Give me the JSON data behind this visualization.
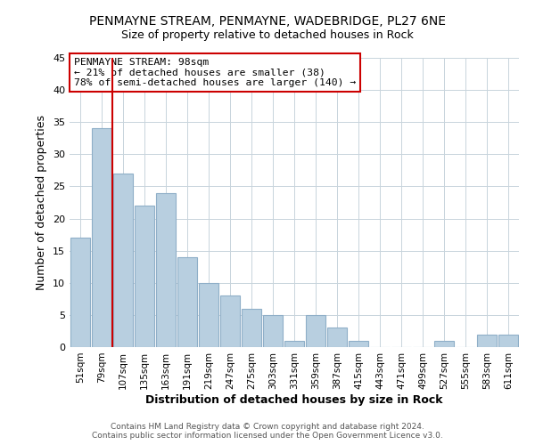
{
  "title": "PENMAYNE STREAM, PENMAYNE, WADEBRIDGE, PL27 6NE",
  "subtitle": "Size of property relative to detached houses in Rock",
  "xlabel": "Distribution of detached houses by size in Rock",
  "ylabel": "Number of detached properties",
  "bar_color": "#b8cfe0",
  "bar_edge_color": "#8fafc8",
  "highlight_line_color": "#cc0000",
  "categories": [
    "51sqm",
    "79sqm",
    "107sqm",
    "135sqm",
    "163sqm",
    "191sqm",
    "219sqm",
    "247sqm",
    "275sqm",
    "303sqm",
    "331sqm",
    "359sqm",
    "387sqm",
    "415sqm",
    "443sqm",
    "471sqm",
    "499sqm",
    "527sqm",
    "555sqm",
    "583sqm",
    "611sqm"
  ],
  "values": [
    17,
    34,
    27,
    22,
    24,
    14,
    10,
    8,
    6,
    5,
    1,
    5,
    3,
    1,
    0,
    0,
    0,
    1,
    0,
    2,
    2
  ],
  "ylim": [
    0,
    45
  ],
  "yticks": [
    0,
    5,
    10,
    15,
    20,
    25,
    30,
    35,
    40,
    45
  ],
  "annotation_title": "PENMAYNE STREAM: 98sqm",
  "annotation_line1": "← 21% of detached houses are smaller (38)",
  "annotation_line2": "78% of semi-detached houses are larger (140) →",
  "footer_line1": "Contains HM Land Registry data © Crown copyright and database right 2024.",
  "footer_line2": "Contains public sector information licensed under the Open Government Licence v3.0.",
  "background_color": "#ffffff",
  "grid_color": "#c8d4dc"
}
